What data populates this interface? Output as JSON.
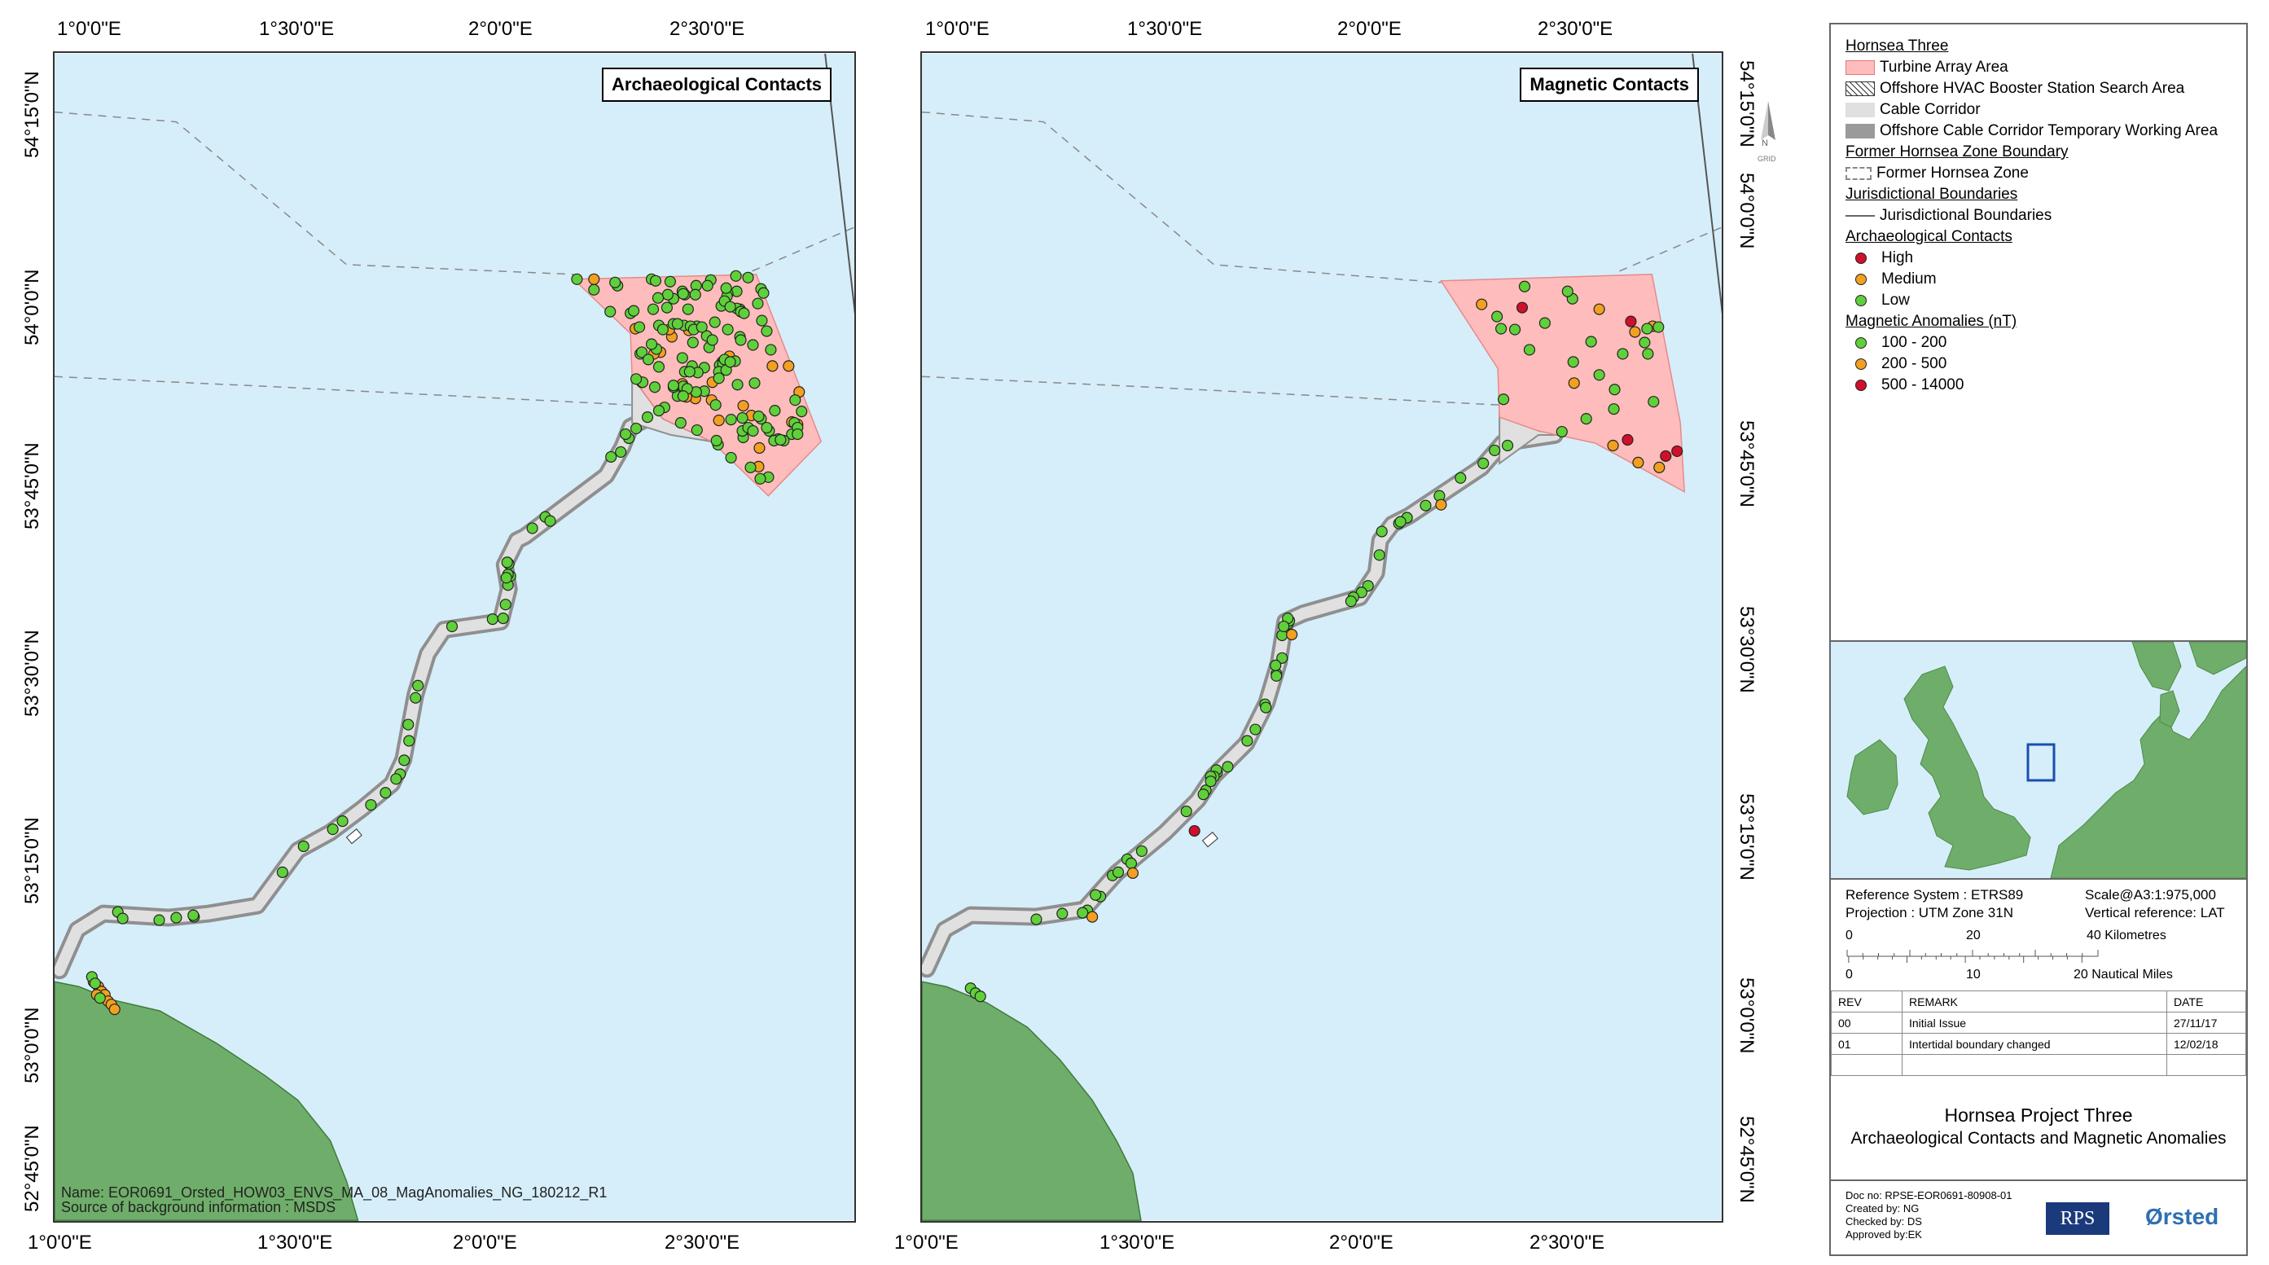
{
  "maps": {
    "left_title": "Archaeological Contacts",
    "right_title": "Magnetic Contacts",
    "footnote_line1": "Name: EOR0691_Orsted_HOW03_ENVS_MA_08_MagAnomalies_NG_180212_R1",
    "footnote_line2": "Source of background information : MSDS"
  },
  "graticule": {
    "lon_labels": [
      "1°0'0\"E",
      "1°30'0\"E",
      "2°0'0\"E",
      "2°30'0\"E"
    ],
    "lat_labels": [
      "54°15'0\"N",
      "54°0'0\"N",
      "53°45'0\"N",
      "53°30'0\"N",
      "53°15'0\"N",
      "53°0'0\"N",
      "52°45'0\"N"
    ]
  },
  "north_arrow": {
    "letter": "N",
    "sub": "GRID"
  },
  "legend": {
    "h1": "Hornsea Three",
    "turbine": "Turbine Array Area",
    "hvac": "Offshore HVAC Booster Station Search Area",
    "cable": "Cable Corridor",
    "temp": "Offshore Cable Corridor Temporary Working Area",
    "h2": "Former Hornsea Zone Boundary",
    "zone": "Former Hornsea Zone",
    "h3": "Jurisdictional Boundaries",
    "juris": "Jurisdictional Boundaries",
    "h4": "Archaeological Contacts",
    "high": "High",
    "medium": "Medium",
    "low": "Low",
    "h5": "Magnetic Anomalies (nT)",
    "m1": "100 - 200",
    "m2": "200 - 500",
    "m3": "500 - 14000"
  },
  "colors": {
    "sea": "#d6eefa",
    "land": "#6fae6a",
    "turbine": "#ffbcbc",
    "cable": "#e0e0e0",
    "cable_edge": "#8f8f8f",
    "high": "#d0102a",
    "medium": "#f2a020",
    "low": "#5fd03a"
  },
  "info": {
    "ref_system": "Reference System : ETRS89",
    "projection": "Projection : UTM Zone 31N",
    "scale": "Scale@A3:1:975,000",
    "vertical": "Vertical reference: LAT",
    "km0": "0",
    "km20": "20",
    "km40": "40 Kilometres",
    "nm0": "0",
    "nm10": "10",
    "nm20": "20 Nautical Miles"
  },
  "revisions": {
    "head": [
      "REV",
      "REMARK",
      "DATE"
    ],
    "rows": [
      [
        "00",
        "Initial Issue",
        "27/11/17"
      ],
      [
        "01",
        "Intertidal boundary changed",
        "12/02/18"
      ]
    ]
  },
  "project": {
    "title": "Hornsea Project Three",
    "subtitle": "Archaeological Contacts and Magnetic Anomalies",
    "doc_no": "Doc no: RPSE-EOR0691-80908-01",
    "created": "Created by: NG",
    "checked": "Checked by: DS",
    "approved": "Approved by:EK",
    "logo_rps": "RPS",
    "logo_orsted": "Ørsted"
  }
}
